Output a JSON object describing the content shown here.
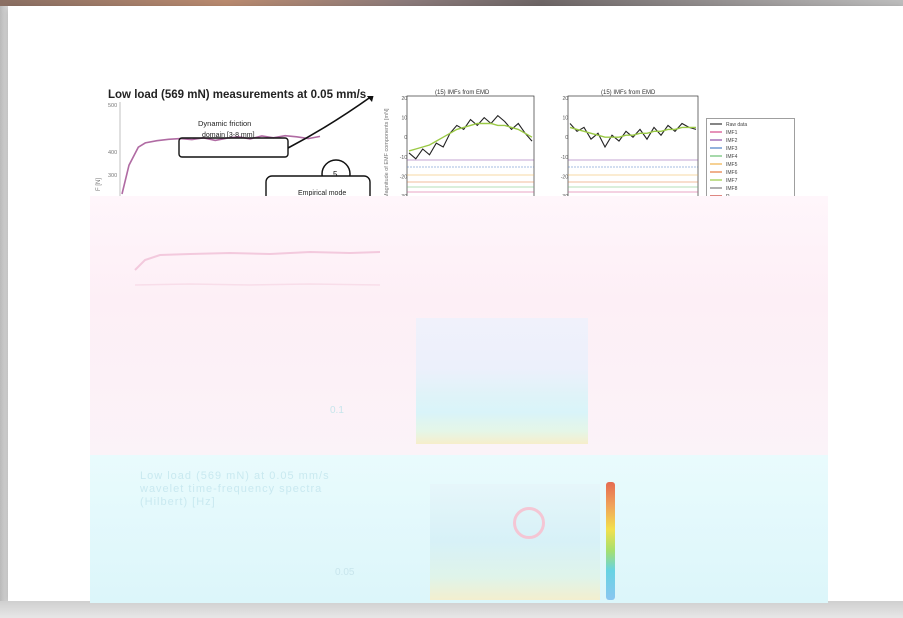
{
  "panel_left": {
    "title": "Low load (569 mN) measurements at 0.05 mm/s",
    "annotation_box": [
      "Dynamic friction",
      "domain [3-8 mm]"
    ],
    "step_number": "5",
    "step_box": [
      "Empirical mode"
    ],
    "y_ticks": [
      "500",
      "400",
      "300"
    ],
    "ylabel": "F [N]",
    "chart_data": {
      "type": "line",
      "title": "",
      "ylim": [
        250,
        500
      ],
      "x": [
        0.0,
        0.3,
        0.7,
        1.0,
        1.5,
        2.0,
        2.5,
        3.0,
        3.5,
        4.0,
        4.5,
        5.0,
        5.5,
        6.0,
        6.5,
        7.0,
        7.5,
        8.0,
        8.5
      ],
      "values": [
        250,
        330,
        380,
        392,
        398,
        402,
        404,
        401,
        406,
        399,
        405,
        409,
        403,
        411,
        406,
        412,
        409,
        404,
        410
      ]
    }
  },
  "panel_imf1": {
    "title": "(15) IMFs from EMD",
    "ylabel": "Magnitude of EMF components [mN]",
    "y_ticks": [
      "20",
      "10",
      "0",
      "-10",
      "-20",
      "-30"
    ],
    "chart_data": {
      "type": "line",
      "ylim": [
        -30,
        20
      ],
      "series": [
        {
          "values": [
            -8,
            -11,
            -6,
            -9,
            -3,
            -5,
            2,
            6,
            4,
            9,
            6,
            10,
            7,
            11,
            8,
            4,
            7,
            2,
            -2
          ]
        },
        {
          "values": [
            -7,
            -6,
            -5,
            -4,
            -2,
            0,
            2,
            4,
            5,
            6,
            7,
            7,
            7,
            6,
            6,
            5,
            4,
            2,
            0
          ]
        }
      ]
    }
  },
  "panel_imf2": {
    "title": "(15) IMFs from EMD",
    "y_ticks": [
      "20",
      "10",
      "0",
      "-10",
      "-20",
      "-30"
    ],
    "chart_data": {
      "type": "line",
      "ylim": [
        -30,
        20
      ],
      "series": [
        {
          "values": [
            7,
            3,
            5,
            -1,
            2,
            -5,
            1,
            -2,
            3,
            0,
            4,
            -1,
            5,
            1,
            6,
            3,
            7,
            5,
            4
          ]
        },
        {
          "values": [
            5,
            4,
            3,
            2,
            1,
            0,
            0,
            0,
            1,
            1,
            2,
            2,
            3,
            3,
            4,
            4,
            5,
            5,
            5
          ]
        }
      ]
    }
  },
  "legend": {
    "entries": [
      "Raw data",
      "IMF1",
      "IMF2",
      "IMF3",
      "IMF4",
      "IMF5",
      "IMF6",
      "IMF7",
      "IMF8",
      "R"
    ],
    "colors": [
      "#333333",
      "#d64a8a",
      "#8d4fa8",
      "#4a7fc6",
      "#6abf73",
      "#f0b24c",
      "#e57b3e",
      "#9ac945",
      "#7b7b7b",
      "#c8372d"
    ]
  },
  "lower_text_lines": [
    "Low load (569 mN) at 0.05 mm/s",
    "wavelet time-frequency spectra",
    "(Hilbert) [Hz]"
  ],
  "colorbar_labels": [
    "0.1",
    "0.05"
  ]
}
